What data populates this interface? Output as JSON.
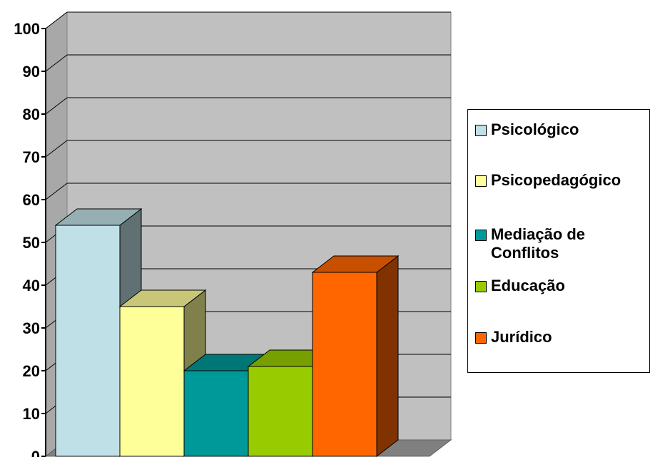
{
  "chart_data": {
    "type": "bar",
    "categories": [
      "Psicológico",
      "Psicopedagógico",
      "Mediação de Conflitos",
      "Educação",
      "Jurídico"
    ],
    "values": [
      54,
      35,
      20,
      21,
      43
    ],
    "colors": [
      "#BFE0E6",
      "#FFFF99",
      "#009999",
      "#99CC00",
      "#FF6600"
    ],
    "ylim": [
      0,
      100
    ],
    "yticks": [
      "0",
      "10",
      "20",
      "30",
      "40",
      "50",
      "60",
      "70",
      "80",
      "90",
      "100"
    ],
    "grid": true,
    "three_d": true,
    "legend": {
      "position": "right",
      "items": [
        "Psicológico",
        "Psicopedagógico",
        "Mediação de Conflitos",
        "Educação",
        "Jurídico"
      ]
    },
    "title": "",
    "xlabel": "",
    "ylabel": ""
  }
}
